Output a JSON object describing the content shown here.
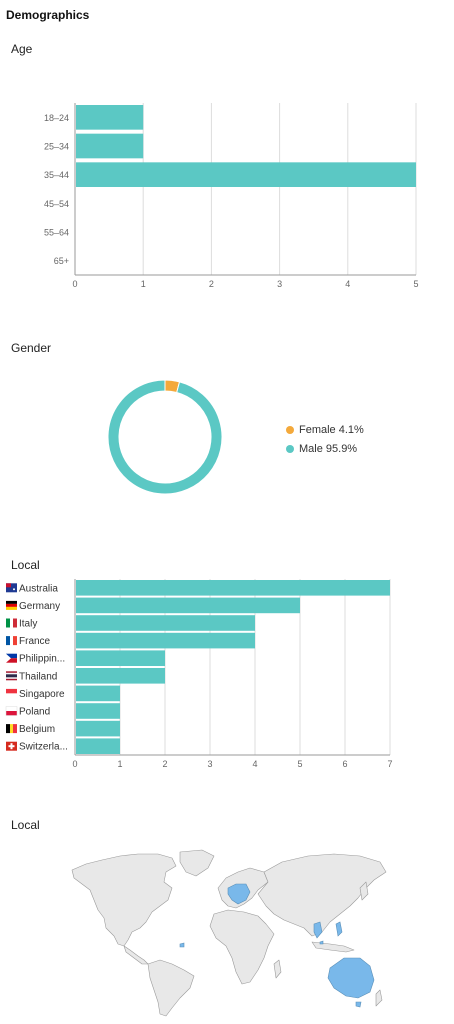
{
  "page_title": "Demographics",
  "colors": {
    "bar": "#5bc8c4",
    "grid": "#dddddd",
    "axis": "#9a9a9a",
    "female": "#f4a93b",
    "male": "#5bc8c4",
    "map_land": "#e8e8e8",
    "map_border": "#9a9a9a",
    "map_highlight": "#79b8ea"
  },
  "sections": {
    "age": {
      "title": "Age"
    },
    "gender": {
      "title": "Gender"
    },
    "local_bar": {
      "title": "Local"
    },
    "local_map": {
      "title": "Local"
    }
  },
  "chart_data": [
    {
      "type": "bar",
      "orientation": "horizontal",
      "categories": [
        "18–24",
        "25–34",
        "35–44",
        "45–54",
        "55–64",
        "65+"
      ],
      "values": [
        1,
        1,
        5,
        0,
        0,
        0
      ],
      "xlim": [
        0,
        5
      ],
      "xticks": [
        0,
        1,
        2,
        3,
        4,
        5
      ],
      "grid": true
    },
    {
      "type": "pie",
      "donut": true,
      "slices": [
        {
          "label": "Female 4.1%",
          "value": 4.1,
          "color": "#f4a93b"
        },
        {
          "label": "Male 95.9%",
          "value": 95.9,
          "color": "#5bc8c4"
        }
      ],
      "legend": "right"
    },
    {
      "type": "bar",
      "orientation": "horizontal",
      "categories": [
        "Australia",
        "Germany",
        "Italy",
        "France",
        "Philippin...",
        "Thailand",
        "Singapore",
        "Poland",
        "Belgium",
        "Switzerla..."
      ],
      "flags": [
        "australia",
        "germany",
        "italy",
        "france",
        "philippines",
        "thailand",
        "singapore",
        "poland",
        "belgium",
        "switzerland"
      ],
      "values": [
        7,
        5,
        4,
        4,
        2,
        2,
        1,
        1,
        1,
        1
      ],
      "xlim": [
        0,
        7
      ],
      "xticks": [
        0,
        1,
        2,
        3,
        4,
        5,
        6,
        7
      ],
      "grid": true
    }
  ]
}
